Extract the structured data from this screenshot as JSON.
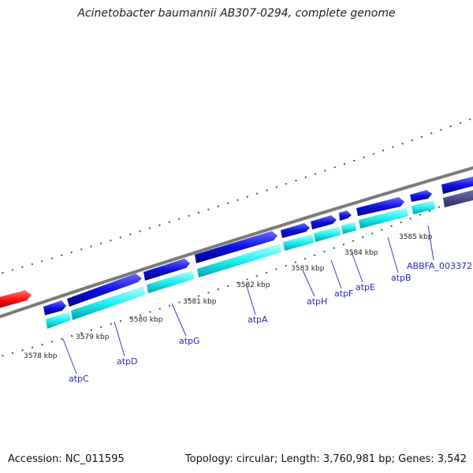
{
  "title": "Acinetobacter baumannii AB307-0294, complete genome",
  "footer": {
    "accession": "Accession: NC_011595",
    "summary": "Topology: circular; Length: 3,760,981 bp; Genes: 3,542"
  },
  "kbp_labels": [
    "3578 kbp",
    "3579 kbp",
    "3580 kbp",
    "3581 kbp",
    "3582 kbp",
    "3583 kbp",
    "3584 kbp",
    "3585 kbp"
  ],
  "gene_labels": [
    "atpC",
    "atpD",
    "atpG",
    "atpA",
    "atpH",
    "atpF",
    "atpE",
    "atpB",
    "ABBFA_003372"
  ],
  "colors": {
    "cds_forward": "#1010e0",
    "cds_shadow": "#00ccd0",
    "highlight": "#ff1010",
    "neighbor": "#4a4a90",
    "tick": "#1a7a1a",
    "backbone": "#808080",
    "label": "#2a2ab8"
  }
}
